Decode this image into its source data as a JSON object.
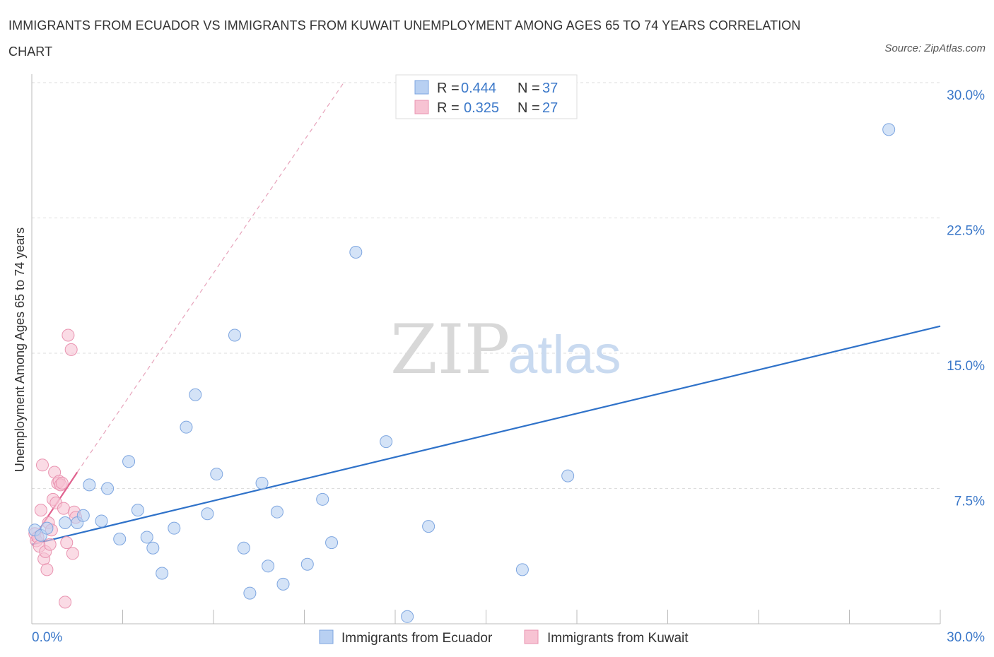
{
  "title": "IMMIGRANTS FROM ECUADOR VS IMMIGRANTS FROM KUWAIT UNEMPLOYMENT AMONG AGES 65 TO 74 YEARS CORRELATION CHART",
  "source": "Source: ZipAtlas.com",
  "watermark": {
    "zip": "ZIP",
    "atlas": "atlas"
  },
  "colors": {
    "ecuador_fill": "#b8d0f2",
    "ecuador_stroke": "#7ea6e0",
    "ecuador_line": "#2f72c9",
    "kuwait_fill": "#f7c3d3",
    "kuwait_stroke": "#e993b0",
    "kuwait_line": "#e0628f",
    "grid": "#dddddd",
    "axis_text": "#3b78c9"
  },
  "legend": {
    "rows": [
      {
        "r_label": "R =",
        "r_value": "0.444",
        "n_label": "N =",
        "n_value": "37"
      },
      {
        "r_label": "R =",
        "r_value": "0.325",
        "n_label": "N =",
        "n_value": "27"
      }
    ]
  },
  "chart_data": {
    "type": "scatter",
    "title": "IMMIGRANTS FROM ECUADOR VS IMMIGRANTS FROM KUWAIT UNEMPLOYMENT AMONG AGES 65 TO 74 YEARS CORRELATION CHART",
    "xlabel": "",
    "ylabel": "Unemployment Among Ages 65 to 74 years",
    "xlim": [
      0,
      30
    ],
    "ylim": [
      0,
      30
    ],
    "x_tick_labels": [
      "0.0%",
      "30.0%"
    ],
    "y_ticks": [
      {
        "value": 7.5,
        "label": "7.5%"
      },
      {
        "value": 15,
        "label": "15.0%"
      },
      {
        "value": 22.5,
        "label": "22.5%"
      },
      {
        "value": 30,
        "label": "30.0%"
      }
    ],
    "grid": true,
    "legend_position": "top-center",
    "series": [
      {
        "name": "Immigrants from Ecuador",
        "r": 0.444,
        "n": 37,
        "trend": {
          "x0": 0,
          "y0": 4.4,
          "x1": 30,
          "y1": 16.5
        },
        "points": [
          [
            0.1,
            5.2
          ],
          [
            0.3,
            4.9
          ],
          [
            0.5,
            5.3
          ],
          [
            1.1,
            5.6
          ],
          [
            1.5,
            5.6
          ],
          [
            1.7,
            6.0
          ],
          [
            1.9,
            7.7
          ],
          [
            2.3,
            5.7
          ],
          [
            2.5,
            7.5
          ],
          [
            2.9,
            4.7
          ],
          [
            3.2,
            9.0
          ],
          [
            3.5,
            6.3
          ],
          [
            3.8,
            4.8
          ],
          [
            4.0,
            4.2
          ],
          [
            4.3,
            2.8
          ],
          [
            4.7,
            5.3
          ],
          [
            5.1,
            10.9
          ],
          [
            5.4,
            12.7
          ],
          [
            5.8,
            6.1
          ],
          [
            6.1,
            8.3
          ],
          [
            6.7,
            16.0
          ],
          [
            7.0,
            4.2
          ],
          [
            7.2,
            1.7
          ],
          [
            7.6,
            7.8
          ],
          [
            7.8,
            3.2
          ],
          [
            8.1,
            6.2
          ],
          [
            8.3,
            2.2
          ],
          [
            9.1,
            3.3
          ],
          [
            9.6,
            6.9
          ],
          [
            9.9,
            4.5
          ],
          [
            10.7,
            20.6
          ],
          [
            11.7,
            10.1
          ],
          [
            12.4,
            0.4
          ],
          [
            13.1,
            5.4
          ],
          [
            16.2,
            3.0
          ],
          [
            17.7,
            8.2
          ],
          [
            28.3,
            27.4
          ]
        ]
      },
      {
        "name": "Immigrants from Kuwait",
        "r": 0.325,
        "n": 27,
        "trend": {
          "x0": 0,
          "y0": 4.6,
          "x1": 1.5,
          "y1": 8.4
        },
        "trend_extension": {
          "x0": 1.5,
          "y0": 8.4,
          "x1": 10.3,
          "y1": 30.0
        },
        "points": [
          [
            0.1,
            5.0
          ],
          [
            0.15,
            4.6
          ],
          [
            0.2,
            4.8
          ],
          [
            0.25,
            4.3
          ],
          [
            0.3,
            6.3
          ],
          [
            0.35,
            8.8
          ],
          [
            0.4,
            3.6
          ],
          [
            0.45,
            4.0
          ],
          [
            0.5,
            3.0
          ],
          [
            0.55,
            5.6
          ],
          [
            0.6,
            4.4
          ],
          [
            0.65,
            5.2
          ],
          [
            0.7,
            6.9
          ],
          [
            0.75,
            8.4
          ],
          [
            0.8,
            6.7
          ],
          [
            0.85,
            7.8
          ],
          [
            0.9,
            7.9
          ],
          [
            0.95,
            7.7
          ],
          [
            1.0,
            7.8
          ],
          [
            1.05,
            6.4
          ],
          [
            1.1,
            1.2
          ],
          [
            1.15,
            4.5
          ],
          [
            1.2,
            16.0
          ],
          [
            1.3,
            15.2
          ],
          [
            1.35,
            3.9
          ],
          [
            1.4,
            6.2
          ],
          [
            1.45,
            5.9
          ]
        ]
      }
    ]
  }
}
